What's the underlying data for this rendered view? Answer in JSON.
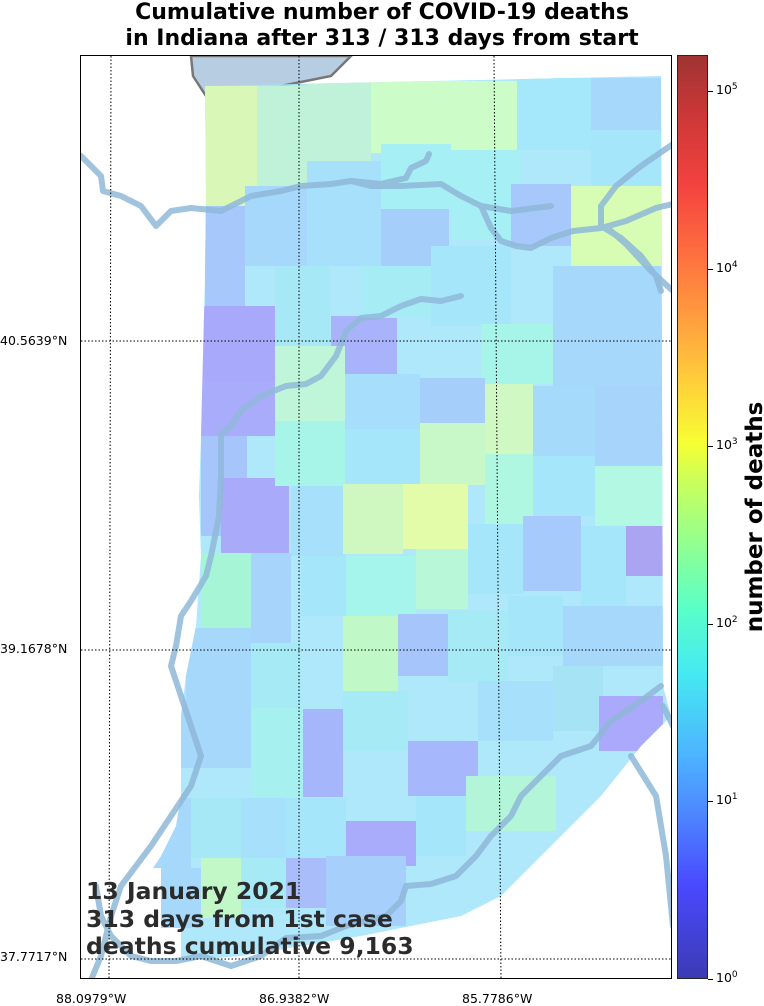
{
  "title": {
    "line1": "Cumulative number of COVID-19 deaths",
    "line2": "in Indiana after 313 / 313 days from start"
  },
  "latitude_labels": [
    "40.5639°N",
    "39.1678°N",
    "37.7717°N"
  ],
  "longitude_labels": [
    "88.0979°W",
    "86.9382°W",
    "85.7786°W"
  ],
  "annotation": {
    "date": "13 January 2021",
    "days": "313 days from 1st case",
    "deaths": "deaths cumulative 9,163"
  },
  "colorbar": {
    "title": "number of deaths",
    "scale": "log",
    "colormap": "jet",
    "range": [
      1,
      160000
    ],
    "ticks": [
      {
        "base": "10",
        "exp": "0",
        "value": 1
      },
      {
        "base": "10",
        "exp": "1",
        "value": 10
      },
      {
        "base": "10",
        "exp": "2",
        "value": 100
      },
      {
        "base": "10",
        "exp": "3",
        "value": 1000
      },
      {
        "base": "10",
        "exp": "4",
        "value": 10000
      },
      {
        "base": "10",
        "exp": "5",
        "value": 100000
      }
    ]
  },
  "colors": {
    "lake": "#b6cde2",
    "river": "#8fb8d8",
    "graticule": "#000000"
  }
}
